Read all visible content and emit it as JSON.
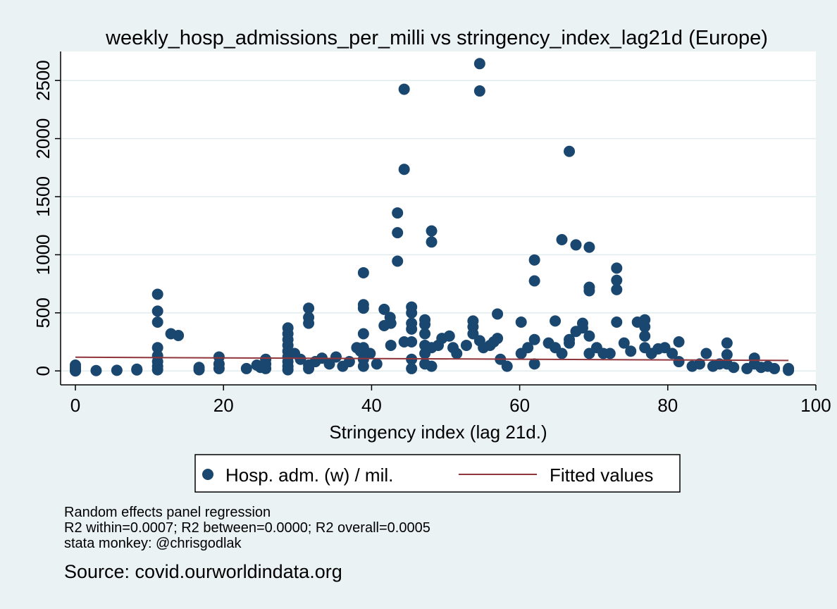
{
  "chart_data": {
    "type": "scatter",
    "title": "weekly_hosp_admissions_per_milli vs stringency_index_lag21d (Europe)",
    "xlabel": "Stringency index (lag 21d.)",
    "ylabel": "",
    "xlim": [
      -2,
      100
    ],
    "ylim": [
      -120,
      2750
    ],
    "xticks": [
      0,
      20,
      40,
      60,
      80,
      100
    ],
    "yticks": [
      0,
      500,
      1000,
      1500,
      2000,
      2500
    ],
    "grid": true,
    "legend_position": "bottom",
    "colors": {
      "points": "#1a476f",
      "fit": "#90353b",
      "background": "#eaf2f3",
      "plot_bg": "#ffffff"
    },
    "series": [
      {
        "name": "Hosp. adm. (w) / mil.",
        "kind": "scatter",
        "points": [
          [
            0,
            0
          ],
          [
            0,
            15
          ],
          [
            0,
            30
          ],
          [
            0,
            50
          ],
          [
            0,
            5
          ],
          [
            2.8,
            3
          ],
          [
            5.6,
            5
          ],
          [
            8.3,
            8
          ],
          [
            8.3,
            15
          ],
          [
            11.1,
            660
          ],
          [
            11.1,
            515
          ],
          [
            11.1,
            420
          ],
          [
            11.1,
            200
          ],
          [
            11.1,
            130
          ],
          [
            11.1,
            80
          ],
          [
            11.1,
            40
          ],
          [
            11.1,
            10
          ],
          [
            12.9,
            320
          ],
          [
            13.9,
            305
          ],
          [
            16.7,
            30
          ],
          [
            16.7,
            10
          ],
          [
            19.4,
            120
          ],
          [
            19.4,
            60
          ],
          [
            19.4,
            20
          ],
          [
            23.1,
            20
          ],
          [
            24.5,
            50
          ],
          [
            25,
            30
          ],
          [
            25.7,
            100
          ],
          [
            25.7,
            60
          ],
          [
            25.7,
            20
          ],
          [
            28.7,
            370
          ],
          [
            28.7,
            320
          ],
          [
            28.7,
            270
          ],
          [
            28.7,
            220
          ],
          [
            28.7,
            170
          ],
          [
            28.7,
            120
          ],
          [
            28.7,
            80
          ],
          [
            28.7,
            40
          ],
          [
            28.7,
            10
          ],
          [
            29.6,
            150
          ],
          [
            30.4,
            100
          ],
          [
            31.5,
            540
          ],
          [
            31.5,
            460
          ],
          [
            31.5,
            410
          ],
          [
            31.5,
            50
          ],
          [
            31.5,
            20
          ],
          [
            32.4,
            80
          ],
          [
            33.3,
            110
          ],
          [
            34.3,
            60
          ],
          [
            35.2,
            120
          ],
          [
            36.1,
            40
          ],
          [
            37,
            80
          ],
          [
            38.9,
            845
          ],
          [
            38.9,
            570
          ],
          [
            38.9,
            540
          ],
          [
            38.9,
            320
          ],
          [
            38.9,
            200
          ],
          [
            38.9,
            150
          ],
          [
            38.9,
            100
          ],
          [
            38.9,
            40
          ],
          [
            38,
            200
          ],
          [
            38.5,
            170
          ],
          [
            39.8,
            150
          ],
          [
            40.7,
            60
          ],
          [
            41.7,
            530
          ],
          [
            41.7,
            390
          ],
          [
            42.5,
            460
          ],
          [
            42.6,
            410
          ],
          [
            42.6,
            220
          ],
          [
            43.5,
            1360
          ],
          [
            43.5,
            1190
          ],
          [
            43.5,
            945
          ],
          [
            44.4,
            2425
          ],
          [
            44.4,
            1735
          ],
          [
            44.4,
            250
          ],
          [
            45.4,
            550
          ],
          [
            45.4,
            500
          ],
          [
            45.4,
            410
          ],
          [
            45.4,
            360
          ],
          [
            45.4,
            250
          ],
          [
            45.4,
            100
          ],
          [
            45.4,
            20
          ],
          [
            47.2,
            440
          ],
          [
            47.2,
            400
          ],
          [
            47.2,
            320
          ],
          [
            47.2,
            220
          ],
          [
            47.2,
            150
          ],
          [
            47.2,
            60
          ],
          [
            48.1,
            1205
          ],
          [
            48.1,
            1110
          ],
          [
            48.1,
            200
          ],
          [
            48.1,
            40
          ],
          [
            49,
            220
          ],
          [
            49.5,
            280
          ],
          [
            50.5,
            300
          ],
          [
            51,
            200
          ],
          [
            51.5,
            150
          ],
          [
            52.8,
            220
          ],
          [
            53.7,
            430
          ],
          [
            53.7,
            380
          ],
          [
            53.7,
            320
          ],
          [
            54.6,
            2645
          ],
          [
            54.6,
            2410
          ],
          [
            54.6,
            260
          ],
          [
            55.1,
            200
          ],
          [
            56,
            220
          ],
          [
            56.5,
            250
          ],
          [
            57,
            490
          ],
          [
            57,
            280
          ],
          [
            57.4,
            100
          ],
          [
            58.3,
            40
          ],
          [
            60.2,
            420
          ],
          [
            60.2,
            150
          ],
          [
            61.1,
            200
          ],
          [
            62,
            955
          ],
          [
            62,
            775
          ],
          [
            62,
            270
          ],
          [
            62,
            60
          ],
          [
            63.9,
            240
          ],
          [
            64.8,
            430
          ],
          [
            64.8,
            200
          ],
          [
            65.7,
            1130
          ],
          [
            65.7,
            150
          ],
          [
            66.7,
            1890
          ],
          [
            66.7,
            270
          ],
          [
            66.7,
            240
          ],
          [
            67.6,
            1085
          ],
          [
            67.6,
            340
          ],
          [
            68.5,
            410
          ],
          [
            68.5,
            370
          ],
          [
            69.4,
            1065
          ],
          [
            69.4,
            720
          ],
          [
            69.4,
            690
          ],
          [
            69.4,
            300
          ],
          [
            69.4,
            150
          ],
          [
            70.4,
            200
          ],
          [
            71.3,
            150
          ],
          [
            72.2,
            150
          ],
          [
            73.1,
            885
          ],
          [
            73.1,
            780
          ],
          [
            73.1,
            700
          ],
          [
            73.1,
            420
          ],
          [
            74.1,
            240
          ],
          [
            75,
            170
          ],
          [
            75.9,
            420
          ],
          [
            76.9,
            440
          ],
          [
            76.9,
            380
          ],
          [
            76.9,
            300
          ],
          [
            76.9,
            200
          ],
          [
            77.8,
            150
          ],
          [
            78.7,
            190
          ],
          [
            79.6,
            200
          ],
          [
            80.6,
            150
          ],
          [
            81.5,
            250
          ],
          [
            81.5,
            80
          ],
          [
            83.3,
            40
          ],
          [
            84.3,
            60
          ],
          [
            85.2,
            150
          ],
          [
            86.1,
            40
          ],
          [
            87,
            60
          ],
          [
            88,
            240
          ],
          [
            88,
            140
          ],
          [
            88,
            60
          ],
          [
            88.9,
            30
          ],
          [
            90.7,
            20
          ],
          [
            91.7,
            110
          ],
          [
            91.7,
            60
          ],
          [
            92.6,
            30
          ],
          [
            93.5,
            40
          ],
          [
            94.4,
            20
          ],
          [
            96.3,
            20
          ],
          [
            96.3,
            5
          ]
        ]
      },
      {
        "name": "Fitted values",
        "kind": "line",
        "points": [
          [
            0,
            118
          ],
          [
            96.3,
            90
          ]
        ]
      }
    ]
  },
  "notes": {
    "line1": "Random effects panel regression",
    "line2": "R2 within=0.0007; R2 between=0.0000; R2 overall=0.0005",
    "line3": "stata monkey: @chrisgodlak"
  },
  "source": "Source: covid.ourworldindata.org"
}
